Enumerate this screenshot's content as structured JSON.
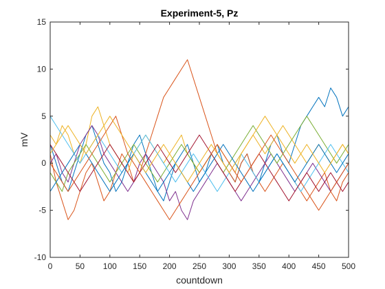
{
  "chart_data": {
    "type": "line",
    "title": "Experiment-5, Pz",
    "xlabel": "countdown",
    "ylabel": "mV",
    "xlim": [
      0,
      500
    ],
    "ylim": [
      -10,
      15
    ],
    "xticks": [
      0,
      50,
      100,
      150,
      200,
      250,
      300,
      350,
      400,
      450,
      500
    ],
    "yticks": [
      -10,
      -5,
      0,
      5,
      10,
      15
    ],
    "grid": false,
    "legend": "none",
    "series": [
      {
        "color": "#0072BD",
        "x": [
          0,
          10,
          20,
          30,
          40,
          50,
          60,
          70,
          80,
          90,
          100,
          110,
          120,
          130,
          140,
          150,
          160,
          170,
          180,
          190,
          200,
          210,
          220,
          230,
          240,
          250,
          260,
          270,
          280,
          290,
          300,
          310,
          320,
          330,
          340,
          350,
          360,
          370,
          380,
          390,
          400,
          410,
          420,
          430,
          440,
          450,
          460,
          470,
          480,
          490,
          500
        ],
        "y": [
          2,
          0,
          -2,
          -3,
          -1,
          1,
          3,
          4,
          2,
          0,
          -1,
          -3,
          -2,
          0,
          2,
          3,
          1,
          -1,
          -3,
          -4,
          -2,
          0,
          1,
          2,
          0,
          -2,
          -1,
          1,
          2,
          0,
          -1,
          -2,
          0,
          1,
          -1,
          -2,
          0,
          2,
          3,
          1,
          0,
          2,
          4,
          5,
          6,
          7,
          6,
          8,
          7,
          5,
          6
        ]
      },
      {
        "color": "#D95319",
        "x": [
          0,
          10,
          20,
          30,
          40,
          50,
          60,
          70,
          80,
          90,
          100,
          110,
          120,
          130,
          140,
          150,
          160,
          170,
          180,
          190,
          200,
          210,
          220,
          230,
          240,
          250,
          260,
          270,
          280,
          290,
          300,
          310,
          320,
          330,
          340,
          350,
          360,
          370,
          380,
          390,
          400,
          410,
          420,
          430,
          440,
          450,
          460,
          470,
          480,
          490,
          500
        ],
        "y": [
          1,
          -2,
          -4,
          -6,
          -5,
          -3,
          -1,
          0,
          -2,
          -4,
          -3,
          -1,
          1,
          0,
          -2,
          -1,
          1,
          3,
          5,
          7,
          8,
          9,
          10,
          11,
          9,
          7,
          5,
          3,
          1,
          0,
          -1,
          -2,
          0,
          1,
          -1,
          -2,
          -3,
          -2,
          -1,
          0,
          -1,
          -2,
          -3,
          -4,
          -3,
          -2,
          -1,
          -3,
          -4,
          -2,
          -1
        ]
      },
      {
        "color": "#EDB120",
        "x": [
          0,
          10,
          20,
          30,
          40,
          50,
          60,
          70,
          80,
          90,
          100,
          110,
          120,
          130,
          140,
          150,
          160,
          170,
          180,
          190,
          200,
          210,
          220,
          230,
          240,
          250,
          260,
          270,
          280,
          290,
          300,
          310,
          320,
          330,
          340,
          350,
          360,
          370,
          380,
          390,
          400,
          410,
          420,
          430,
          440,
          450,
          460,
          470,
          480,
          490,
          500
        ],
        "y": [
          3,
          2,
          4,
          3,
          1,
          0,
          2,
          5,
          6,
          4,
          2,
          1,
          0,
          -1,
          1,
          2,
          3,
          2,
          1,
          0,
          1,
          2,
          3,
          1,
          0,
          -1,
          0,
          1,
          2,
          1,
          0,
          -1,
          1,
          2,
          3,
          2,
          1,
          2,
          3,
          4,
          3,
          2,
          1,
          0,
          1,
          2,
          1,
          0,
          1,
          2,
          1
        ]
      },
      {
        "color": "#7E2F8E",
        "x": [
          0,
          10,
          20,
          30,
          40,
          50,
          60,
          70,
          80,
          90,
          100,
          110,
          120,
          130,
          140,
          150,
          160,
          170,
          180,
          190,
          200,
          210,
          220,
          230,
          240,
          250,
          260,
          270,
          280,
          290,
          300,
          310,
          320,
          330,
          340,
          350,
          360,
          370,
          380,
          390,
          400,
          410,
          420,
          430,
          440,
          450,
          460,
          470,
          480,
          490,
          500
        ],
        "y": [
          0,
          1,
          -1,
          -2,
          0,
          2,
          3,
          4,
          3,
          1,
          0,
          -1,
          -2,
          -3,
          -2,
          0,
          1,
          0,
          -1,
          -2,
          -4,
          -3,
          -5,
          -6,
          -4,
          -3,
          -2,
          -1,
          0,
          -1,
          -2,
          -3,
          -4,
          -3,
          -2,
          -1,
          0,
          1,
          0,
          -1,
          -2,
          -3,
          -2,
          -1,
          0,
          -1,
          -2,
          -3,
          -2,
          -1,
          0
        ]
      },
      {
        "color": "#77AC30",
        "x": [
          0,
          10,
          20,
          30,
          40,
          50,
          60,
          70,
          80,
          90,
          100,
          110,
          120,
          130,
          140,
          150,
          160,
          170,
          180,
          190,
          200,
          210,
          220,
          230,
          240,
          250,
          260,
          270,
          280,
          290,
          300,
          310,
          320,
          330,
          340,
          350,
          360,
          370,
          380,
          390,
          400,
          410,
          420,
          430,
          440,
          450,
          460,
          470,
          480,
          490,
          500
        ],
        "y": [
          -1,
          -2,
          -3,
          -1,
          0,
          1,
          2,
          1,
          0,
          -1,
          -2,
          -1,
          0,
          1,
          2,
          1,
          0,
          -1,
          -2,
          -1,
          0,
          1,
          2,
          1,
          0,
          -1,
          0,
          1,
          0,
          -1,
          0,
          1,
          2,
          3,
          4,
          3,
          2,
          1,
          0,
          1,
          2,
          3,
          4,
          5,
          4,
          3,
          2,
          1,
          0,
          1,
          2
        ]
      },
      {
        "color": "#4DBEEE",
        "x": [
          0,
          10,
          20,
          30,
          40,
          50,
          60,
          70,
          80,
          90,
          100,
          110,
          120,
          130,
          140,
          150,
          160,
          170,
          180,
          190,
          200,
          210,
          220,
          230,
          240,
          250,
          260,
          270,
          280,
          290,
          300,
          310,
          320,
          330,
          340,
          350,
          360,
          370,
          380,
          390,
          400,
          410,
          420,
          430,
          440,
          450,
          460,
          470,
          480,
          490,
          500
        ],
        "y": [
          5,
          4,
          3,
          2,
          1,
          0,
          1,
          2,
          3,
          2,
          1,
          0,
          -1,
          0,
          1,
          2,
          3,
          2,
          1,
          0,
          -1,
          -2,
          -1,
          0,
          1,
          0,
          -1,
          -2,
          -3,
          -2,
          -1,
          0,
          1,
          0,
          -1,
          -2,
          -1,
          0,
          1,
          0,
          -1,
          -2,
          -3,
          -2,
          -1,
          0,
          1,
          2,
          1,
          0,
          -1
        ]
      },
      {
        "color": "#A2142F",
        "x": [
          0,
          10,
          20,
          30,
          40,
          50,
          60,
          70,
          80,
          90,
          100,
          110,
          120,
          130,
          140,
          150,
          160,
          170,
          180,
          190,
          200,
          210,
          220,
          230,
          240,
          250,
          260,
          270,
          280,
          290,
          300,
          310,
          320,
          330,
          340,
          350,
          360,
          370,
          380,
          390,
          400,
          410,
          420,
          430,
          440,
          450,
          460,
          470,
          480,
          490,
          500
        ],
        "y": [
          2,
          1,
          0,
          -1,
          -2,
          -3,
          -2,
          -1,
          0,
          1,
          2,
          1,
          0,
          -1,
          -2,
          -1,
          0,
          1,
          2,
          1,
          0,
          -1,
          0,
          1,
          2,
          3,
          2,
          1,
          0,
          -1,
          -2,
          -3,
          -2,
          -1,
          0,
          1,
          0,
          -1,
          -2,
          -3,
          -4,
          -3,
          -2,
          -1,
          -2,
          -3,
          -2,
          -1,
          -2,
          -3,
          -2
        ]
      },
      {
        "color": "#0072BD",
        "x": [
          0,
          10,
          20,
          30,
          40,
          50,
          60,
          70,
          80,
          90,
          100,
          110,
          120,
          130,
          140,
          150,
          160,
          170,
          180,
          190,
          200,
          210,
          220,
          230,
          240,
          250,
          260,
          270,
          280,
          290,
          300,
          310,
          320,
          330,
          340,
          350,
          360,
          370,
          380,
          390,
          400,
          410,
          420,
          430,
          440,
          450,
          460,
          470,
          480,
          490,
          500
        ],
        "y": [
          -3,
          -2,
          -1,
          0,
          1,
          2,
          1,
          0,
          -1,
          -2,
          -3,
          -2,
          -1,
          0,
          1,
          0,
          -1,
          -2,
          -3,
          -2,
          -1,
          0,
          -1,
          -2,
          -3,
          -2,
          -1,
          0,
          1,
          2,
          1,
          0,
          -1,
          -2,
          -3,
          -2,
          -1,
          0,
          1,
          0,
          -1,
          -2,
          -1,
          0,
          1,
          2,
          1,
          0,
          -1,
          0,
          1
        ]
      },
      {
        "color": "#D95319",
        "x": [
          0,
          10,
          20,
          30,
          40,
          50,
          60,
          70,
          80,
          90,
          100,
          110,
          120,
          130,
          140,
          150,
          160,
          170,
          180,
          190,
          200,
          210,
          220,
          230,
          240,
          250,
          260,
          270,
          280,
          290,
          300,
          310,
          320,
          330,
          340,
          350,
          360,
          370,
          380,
          390,
          400,
          410,
          420,
          430,
          440,
          450,
          460,
          470,
          480,
          490,
          500
        ],
        "y": [
          0,
          -1,
          -2,
          -3,
          -2,
          -1,
          0,
          1,
          2,
          3,
          4,
          5,
          3,
          1,
          0,
          -1,
          -2,
          -3,
          -4,
          -5,
          -6,
          -5,
          -4,
          -3,
          -2,
          -1,
          0,
          1,
          2,
          1,
          0,
          -1,
          -2,
          -1,
          0,
          1,
          2,
          3,
          2,
          1,
          0,
          -1,
          -2,
          -3,
          -4,
          -5,
          -4,
          -3,
          -2,
          -1,
          0
        ]
      },
      {
        "color": "#EDB120",
        "x": [
          0,
          10,
          20,
          30,
          40,
          50,
          60,
          70,
          80,
          90,
          100,
          110,
          120,
          130,
          140,
          150,
          160,
          170,
          180,
          190,
          200,
          210,
          220,
          230,
          240,
          250,
          260,
          270,
          280,
          290,
          300,
          310,
          320,
          330,
          340,
          350,
          360,
          370,
          380,
          390,
          400,
          410,
          420,
          430,
          440,
          450,
          460,
          470,
          480,
          490,
          500
        ],
        "y": [
          1,
          2,
          3,
          4,
          3,
          2,
          1,
          2,
          3,
          4,
          5,
          4,
          3,
          2,
          1,
          0,
          -1,
          0,
          1,
          2,
          1,
          0,
          -1,
          -2,
          -1,
          0,
          1,
          2,
          1,
          0,
          -1,
          0,
          1,
          2,
          3,
          4,
          5,
          4,
          3,
          2,
          1,
          0,
          1,
          2,
          1,
          0,
          -1,
          0,
          1,
          2,
          1
        ]
      }
    ]
  }
}
